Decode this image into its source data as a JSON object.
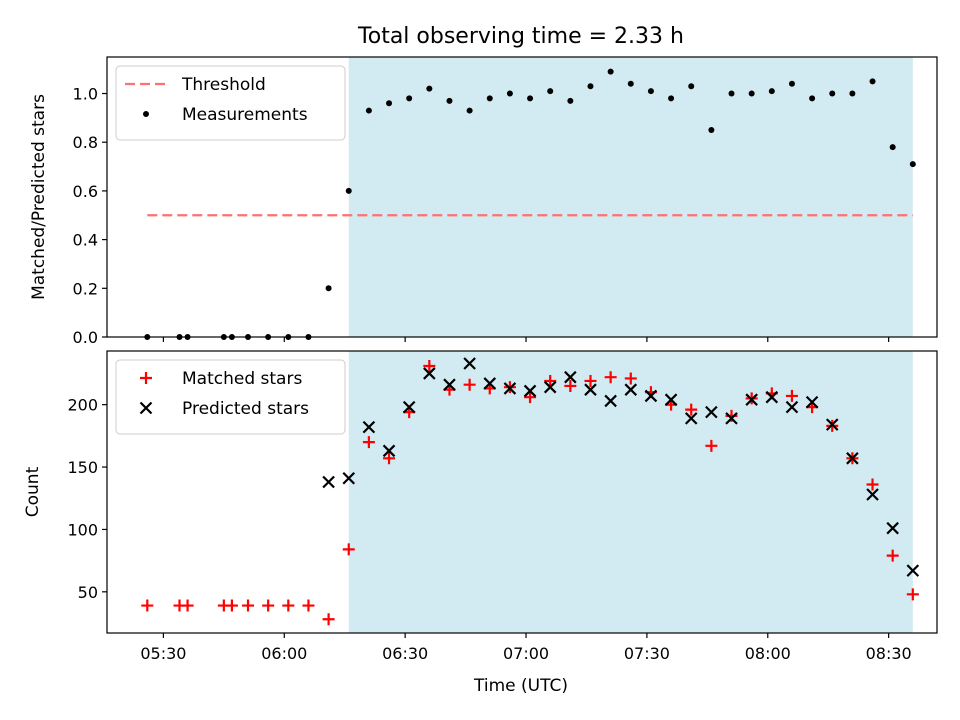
{
  "figure": {
    "title": "Total observing time = 2.33 h",
    "xlabel": "Time (UTC)",
    "x_ticks": [
      "05:30",
      "06:00",
      "06:30",
      "07:00",
      "07:30",
      "08:00",
      "08:30"
    ],
    "x_range": [
      "05:16",
      "08:42"
    ],
    "shaded_window": [
      "06:16",
      "08:36"
    ],
    "shade_color": "#add8e6"
  },
  "chart_data": [
    {
      "type": "scatter",
      "ylabel": "Matched/Predicted stars",
      "ylim": [
        0,
        1.15
      ],
      "yticks": [
        "0.0",
        "0.2",
        "0.4",
        "0.6",
        "0.8",
        "1.0"
      ],
      "legend_position": "top-left",
      "threshold": {
        "name": "Threshold",
        "value": 0.5,
        "x_start": "05:26",
        "x_end": "08:36",
        "color": "#ff7070"
      },
      "series": [
        {
          "name": "Measurements",
          "color": "#000000",
          "x": [
            "05:26",
            "05:34",
            "05:36",
            "05:45",
            "05:47",
            "05:51",
            "05:56",
            "06:01",
            "06:06",
            "06:11",
            "06:16",
            "06:21",
            "06:26",
            "06:31",
            "06:36",
            "06:41",
            "06:46",
            "06:51",
            "06:56",
            "07:01",
            "07:06",
            "07:11",
            "07:16",
            "07:21",
            "07:26",
            "07:31",
            "07:36",
            "07:41",
            "07:46",
            "07:51",
            "07:56",
            "08:01",
            "08:06",
            "08:11",
            "08:16",
            "08:21",
            "08:26",
            "08:31",
            "08:36"
          ],
          "y": [
            0,
            0,
            0,
            0,
            0,
            0,
            0,
            0,
            0,
            0.2,
            0.6,
            0.93,
            0.96,
            0.98,
            1.02,
            0.97,
            0.93,
            0.98,
            1.0,
            0.98,
            1.01,
            0.97,
            1.03,
            1.09,
            1.04,
            1.01,
            0.98,
            1.03,
            0.85,
            1.0,
            1.0,
            1.01,
            1.04,
            0.98,
            1.0,
            1.0,
            1.05,
            0.78,
            0.71
          ]
        }
      ]
    },
    {
      "type": "scatter",
      "ylabel": "Count",
      "ylim": [
        17,
        243
      ],
      "yticks": [
        "50",
        "100",
        "150",
        "200"
      ],
      "legend_position": "top-left",
      "series": [
        {
          "name": "Matched stars",
          "marker": "plus",
          "color": "#ff0000",
          "x": [
            "05:26",
            "05:34",
            "05:36",
            "05:45",
            "05:47",
            "05:51",
            "05:56",
            "06:01",
            "06:06",
            "06:11",
            "06:16",
            "06:21",
            "06:26",
            "06:31",
            "06:36",
            "06:41",
            "06:46",
            "06:51",
            "06:56",
            "07:01",
            "07:06",
            "07:11",
            "07:16",
            "07:21",
            "07:26",
            "07:31",
            "07:36",
            "07:41",
            "07:46",
            "07:51",
            "07:56",
            "08:01",
            "08:06",
            "08:11",
            "08:16",
            "08:21",
            "08:26",
            "08:31",
            "08:36"
          ],
          "y": [
            39,
            39,
            39,
            39,
            39,
            39,
            39,
            39,
            39,
            28,
            84,
            170,
            157,
            194,
            231,
            212,
            216,
            213,
            214,
            206,
            219,
            215,
            219,
            222,
            221,
            210,
            200,
            196,
            167,
            191,
            205,
            209,
            207,
            198,
            183,
            157,
            136,
            79,
            48
          ]
        },
        {
          "name": "Predicted stars",
          "marker": "x",
          "color": "#000000",
          "x": [
            "06:11",
            "06:16",
            "06:21",
            "06:26",
            "06:31",
            "06:36",
            "06:41",
            "06:46",
            "06:51",
            "06:56",
            "07:01",
            "07:06",
            "07:11",
            "07:16",
            "07:21",
            "07:26",
            "07:31",
            "07:36",
            "07:41",
            "07:46",
            "07:51",
            "07:56",
            "08:01",
            "08:06",
            "08:11",
            "08:16",
            "08:21",
            "08:26",
            "08:31",
            "08:36"
          ],
          "y": [
            138,
            141,
            182,
            163,
            198,
            225,
            216,
            233,
            217,
            213,
            211,
            214,
            222,
            212,
            203,
            212,
            207,
            204,
            189,
            194,
            189,
            204,
            206,
            198,
            202,
            184,
            157,
            128,
            101,
            67
          ]
        }
      ]
    }
  ]
}
